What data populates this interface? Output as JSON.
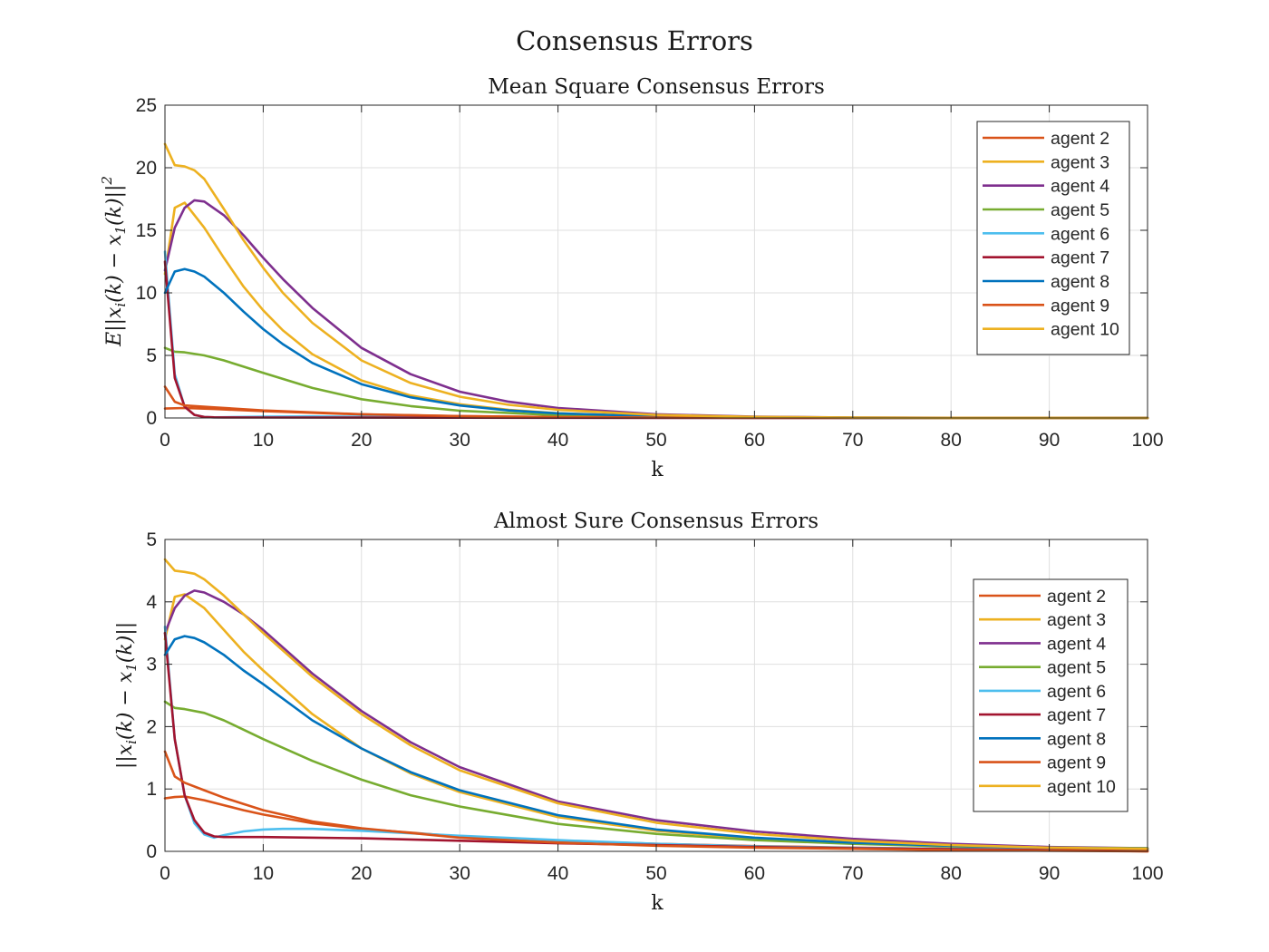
{
  "figure": {
    "title": "Consensus Errors"
  },
  "colors": {
    "agent2": "#D95319",
    "agent3": "#EDB120",
    "agent4": "#7E2F8E",
    "agent5": "#77AC30",
    "agent6": "#4DBEEE",
    "agent7": "#A2142F",
    "agent8": "#0072BD",
    "agent9": "#D95319",
    "agent10": "#EDB120"
  },
  "chart_data": [
    {
      "type": "line",
      "title": "Mean Square Consensus Errors",
      "xlabel": "k",
      "ylabel": "E||x_i(k) - x_1(k)||^2",
      "xlim": [
        0,
        100
      ],
      "ylim": [
        0,
        25
      ],
      "xticks": [
        0,
        10,
        20,
        30,
        40,
        50,
        60,
        70,
        80,
        90,
        100
      ],
      "yticks": [
        0,
        5,
        10,
        15,
        20,
        25
      ],
      "grid": true,
      "legend_location": "top-right",
      "series": [
        {
          "name": "agent 2",
          "color": "#D95319",
          "x": [
            0,
            2,
            5,
            10,
            20,
            30,
            40,
            50,
            60,
            80,
            100
          ],
          "y": [
            0.75,
            0.8,
            0.72,
            0.55,
            0.28,
            0.14,
            0.07,
            0.035,
            0.015,
            0.004,
            0.001
          ]
        },
        {
          "name": "agent 3",
          "color": "#EDB120",
          "x": [
            0,
            1,
            2,
            4,
            6,
            8,
            10,
            12,
            15,
            20,
            25,
            30,
            35,
            40,
            50,
            60,
            70,
            80,
            100
          ],
          "y": [
            11.5,
            16.8,
            17.2,
            15.2,
            12.8,
            10.5,
            8.6,
            7.0,
            5.1,
            3.0,
            1.8,
            1.1,
            0.65,
            0.38,
            0.13,
            0.045,
            0.015,
            0.005,
            0.001
          ]
        },
        {
          "name": "agent 4",
          "color": "#7E2F8E",
          "x": [
            0,
            1,
            2,
            3,
            4,
            6,
            8,
            10,
            12,
            15,
            20,
            25,
            30,
            35,
            40,
            50,
            60,
            70,
            80,
            100
          ],
          "y": [
            11.8,
            15.2,
            16.8,
            17.4,
            17.3,
            16.2,
            14.6,
            12.8,
            11.1,
            8.8,
            5.6,
            3.5,
            2.1,
            1.3,
            0.8,
            0.3,
            0.1,
            0.035,
            0.012,
            0.001
          ]
        },
        {
          "name": "agent 5",
          "color": "#77AC30",
          "x": [
            0,
            1,
            2,
            4,
            6,
            8,
            10,
            15,
            20,
            25,
            30,
            40,
            50,
            60,
            80,
            100
          ],
          "y": [
            5.6,
            5.3,
            5.25,
            5.0,
            4.6,
            4.1,
            3.6,
            2.4,
            1.5,
            0.95,
            0.58,
            0.22,
            0.08,
            0.03,
            0.004,
            0.001
          ]
        },
        {
          "name": "agent 6",
          "color": "#4DBEEE",
          "x": [
            0,
            1,
            2,
            3,
            4,
            5,
            6,
            10,
            15,
            20,
            30,
            40,
            60,
            80,
            100
          ],
          "y": [
            13.3,
            3.5,
            0.9,
            0.25,
            0.08,
            0.05,
            0.06,
            0.1,
            0.12,
            0.1,
            0.06,
            0.03,
            0.008,
            0.002,
            0.0005
          ]
        },
        {
          "name": "agent 7",
          "color": "#A2142F",
          "x": [
            0,
            1,
            2,
            3,
            4,
            5,
            6,
            10,
            20,
            30,
            50,
            70,
            100
          ],
          "y": [
            12.5,
            3.2,
            0.9,
            0.25,
            0.08,
            0.05,
            0.04,
            0.035,
            0.028,
            0.02,
            0.01,
            0.004,
            0.001
          ]
        },
        {
          "name": "agent 8",
          "color": "#0072BD",
          "x": [
            0,
            1,
            2,
            3,
            4,
            6,
            8,
            10,
            12,
            15,
            20,
            25,
            30,
            35,
            40,
            50,
            60,
            70,
            80,
            100
          ],
          "y": [
            10.0,
            11.7,
            11.9,
            11.7,
            11.3,
            10.0,
            8.5,
            7.1,
            5.9,
            4.4,
            2.7,
            1.65,
            1.0,
            0.6,
            0.37,
            0.13,
            0.045,
            0.015,
            0.005,
            0.001
          ]
        },
        {
          "name": "agent 9",
          "color": "#D95319",
          "x": [
            0,
            1,
            2,
            5,
            10,
            20,
            30,
            40,
            50,
            60,
            80,
            100
          ],
          "y": [
            2.5,
            1.3,
            1.0,
            0.85,
            0.6,
            0.3,
            0.15,
            0.075,
            0.035,
            0.015,
            0.004,
            0.001
          ]
        },
        {
          "name": "agent 10",
          "color": "#EDB120",
          "x": [
            0,
            1,
            2,
            3,
            4,
            6,
            8,
            10,
            12,
            15,
            20,
            25,
            30,
            35,
            40,
            50,
            60,
            70,
            80,
            100
          ],
          "y": [
            21.9,
            20.2,
            20.1,
            19.8,
            19.1,
            16.7,
            14.2,
            12.0,
            10.0,
            7.6,
            4.6,
            2.8,
            1.7,
            1.05,
            0.65,
            0.24,
            0.085,
            0.03,
            0.01,
            0.001
          ]
        }
      ]
    },
    {
      "type": "line",
      "title": "Almost Sure Consensus Errors",
      "xlabel": "k",
      "ylabel": "||x_i(k) - x_1(k)||",
      "xlim": [
        0,
        100
      ],
      "ylim": [
        0,
        5
      ],
      "xticks": [
        0,
        10,
        20,
        30,
        40,
        50,
        60,
        70,
        80,
        90,
        100
      ],
      "yticks": [
        0,
        1,
        2,
        3,
        4,
        5
      ],
      "grid": true,
      "legend_location": "top-right",
      "series": [
        {
          "name": "agent 2",
          "color": "#D95319",
          "x": [
            0,
            1,
            2,
            4,
            6,
            8,
            10,
            15,
            20,
            30,
            40,
            50,
            60,
            70,
            80,
            90,
            100
          ],
          "y": [
            0.85,
            0.87,
            0.88,
            0.82,
            0.74,
            0.66,
            0.59,
            0.45,
            0.36,
            0.24,
            0.17,
            0.12,
            0.085,
            0.06,
            0.04,
            0.02,
            0.0
          ]
        },
        {
          "name": "agent 3",
          "color": "#EDB120",
          "x": [
            0,
            1,
            2,
            4,
            6,
            8,
            10,
            15,
            20,
            25,
            30,
            40,
            50,
            60,
            70,
            80,
            90,
            100
          ],
          "y": [
            3.4,
            4.08,
            4.12,
            3.9,
            3.55,
            3.2,
            2.9,
            2.2,
            1.65,
            1.25,
            0.95,
            0.55,
            0.33,
            0.2,
            0.13,
            0.08,
            0.05,
            0.03
          ]
        },
        {
          "name": "agent 4",
          "color": "#7E2F8E",
          "x": [
            0,
            1,
            2,
            3,
            4,
            6,
            8,
            10,
            15,
            20,
            25,
            30,
            40,
            50,
            60,
            70,
            80,
            90,
            100
          ],
          "y": [
            3.5,
            3.9,
            4.1,
            4.18,
            4.15,
            4.0,
            3.8,
            3.55,
            2.85,
            2.25,
            1.75,
            1.35,
            0.8,
            0.5,
            0.32,
            0.2,
            0.12,
            0.07,
            0.05
          ]
        },
        {
          "name": "agent 5",
          "color": "#77AC30",
          "x": [
            0,
            1,
            2,
            4,
            6,
            8,
            10,
            15,
            20,
            25,
            30,
            40,
            50,
            60,
            70,
            80,
            90,
            100
          ],
          "y": [
            2.4,
            2.3,
            2.28,
            2.22,
            2.1,
            1.95,
            1.8,
            1.45,
            1.15,
            0.9,
            0.72,
            0.44,
            0.28,
            0.18,
            0.12,
            0.08,
            0.06,
            0.05
          ]
        },
        {
          "name": "agent 6",
          "color": "#4DBEEE",
          "x": [
            0,
            1,
            2,
            3,
            4,
            5,
            6,
            8,
            10,
            12,
            15,
            20,
            30,
            40,
            50,
            60,
            70,
            80,
            90,
            100
          ],
          "y": [
            3.6,
            1.8,
            0.9,
            0.45,
            0.27,
            0.22,
            0.26,
            0.32,
            0.35,
            0.36,
            0.36,
            0.33,
            0.25,
            0.18,
            0.12,
            0.08,
            0.055,
            0.04,
            0.03,
            0.02
          ]
        },
        {
          "name": "agent 7",
          "color": "#A2142F",
          "x": [
            0,
            1,
            2,
            3,
            4,
            5,
            6,
            10,
            20,
            30,
            40,
            50,
            60,
            70,
            80,
            90,
            100
          ],
          "y": [
            3.5,
            1.8,
            0.9,
            0.5,
            0.3,
            0.24,
            0.23,
            0.23,
            0.21,
            0.17,
            0.13,
            0.1,
            0.07,
            0.05,
            0.035,
            0.02,
            0.015
          ]
        },
        {
          "name": "agent 8",
          "color": "#0072BD",
          "x": [
            0,
            1,
            2,
            3,
            4,
            6,
            8,
            10,
            15,
            20,
            25,
            30,
            40,
            50,
            60,
            70,
            80,
            90,
            100
          ],
          "y": [
            3.15,
            3.4,
            3.45,
            3.42,
            3.35,
            3.15,
            2.9,
            2.68,
            2.1,
            1.65,
            1.27,
            0.98,
            0.58,
            0.35,
            0.22,
            0.14,
            0.09,
            0.06,
            0.04
          ]
        },
        {
          "name": "agent 9",
          "color": "#D95319",
          "x": [
            0,
            1,
            2,
            4,
            6,
            8,
            10,
            15,
            20,
            30,
            40,
            50,
            60,
            70,
            80,
            90,
            100
          ],
          "y": [
            1.6,
            1.2,
            1.1,
            0.98,
            0.86,
            0.76,
            0.66,
            0.48,
            0.37,
            0.22,
            0.14,
            0.09,
            0.06,
            0.04,
            0.02,
            0.01,
            0.0
          ]
        },
        {
          "name": "agent 10",
          "color": "#EDB120",
          "x": [
            0,
            1,
            2,
            3,
            4,
            6,
            8,
            10,
            15,
            20,
            25,
            30,
            40,
            50,
            60,
            70,
            80,
            90,
            100
          ],
          "y": [
            4.68,
            4.5,
            4.48,
            4.45,
            4.36,
            4.1,
            3.8,
            3.5,
            2.8,
            2.2,
            1.7,
            1.3,
            0.77,
            0.46,
            0.28,
            0.17,
            0.1,
            0.06,
            0.04
          ]
        }
      ]
    }
  ]
}
